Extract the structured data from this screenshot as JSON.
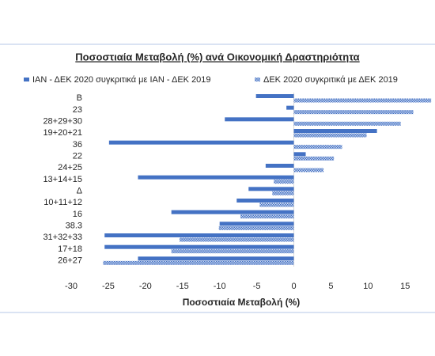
{
  "chart_data": {
    "type": "hbar",
    "title": "Ποσοστιαία Μεταβολή (%) ανά Οικονομική Δραστηριότητα",
    "x_label": "Ποσοστιαία Μεταβολή (%)",
    "categories": [
      "B",
      "23",
      "28+29+30",
      "19+20+21",
      "36",
      "22",
      "24+25",
      "13+14+15",
      "Δ",
      "10+11+12",
      "16",
      "38.3",
      "31+32+33",
      "17+18",
      "26+27"
    ],
    "series": [
      {
        "name": "ΙΑΝ - ΔΕΚ 2020 συγκριτικά με  ΙΑΝ - ΔΕΚ 2019",
        "color": "#4472c4",
        "pattern": "solid",
        "values": [
          -5.1,
          -1.0,
          -9.3,
          11.2,
          -24.9,
          1.6,
          -3.8,
          -21.0,
          -6.1,
          -7.7,
          -16.5,
          -10.0,
          -25.5,
          -25.5,
          -21.0
        ]
      },
      {
        "name": "ΔΕΚ 2020 συγκριτικά με ΔΕΚ 2019",
        "color": "#4472c4",
        "pattern": "dotted",
        "values": [
          18.5,
          16.1,
          14.4,
          9.8,
          6.5,
          5.4,
          4.0,
          -2.7,
          -2.9,
          -4.6,
          -7.2,
          -10.1,
          -15.4,
          -16.5,
          -25.7
        ]
      }
    ],
    "xlim": [
      -30,
      18.7
    ],
    "xticks": [
      -30,
      -25,
      -20,
      -15,
      -10,
      -5,
      0,
      5,
      10,
      15
    ],
    "legend": "top"
  }
}
